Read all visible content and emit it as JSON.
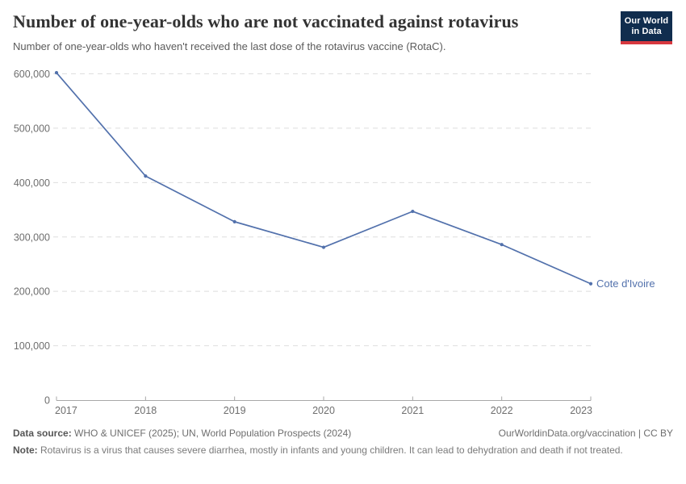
{
  "header": {
    "logo": {
      "line1": "Our World",
      "line2": "in Data"
    }
  },
  "chart_data": {
    "type": "line",
    "title": "Number of one-year-olds who are not vaccinated against rotavirus",
    "subtitle": "Number of one-year-olds who haven't received the last dose of the rotavirus vaccine (RotaC).",
    "x": [
      2017,
      2018,
      2019,
      2020,
      2021,
      2022,
      2023
    ],
    "series": [
      {
        "name": "Cote d'Ivoire",
        "color": "#5271ac",
        "values": [
          602000,
          412000,
          328000,
          281000,
          347000,
          286000,
          214000
        ]
      }
    ],
    "xlabel": "",
    "ylabel": "",
    "ylim": [
      0,
      600000
    ],
    "y_ticks": [
      0,
      100000,
      200000,
      300000,
      400000,
      500000,
      600000
    ],
    "x_tick_labels": [
      "2017",
      "2018",
      "2019",
      "2020",
      "2021",
      "2022",
      "2023"
    ],
    "grid": "horizontal-dashed",
    "legend_position": "end-of-line-label"
  },
  "footer": {
    "data_source_label": "Data source:",
    "data_source_text": " WHO & UNICEF (2025); UN, World Population Prospects (2024)",
    "link_text": "OurWorldinData.org/vaccination | CC BY",
    "note_label": "Note:",
    "note_text": " Rotavirus is a virus that causes severe diarrhea, mostly in infants and young children. It can lead to dehydration and death if not treated."
  },
  "colors": {
    "line": "#5271ac",
    "brand_navy": "#102d4e",
    "brand_red": "#d7383f",
    "grid": "#dedede",
    "axis": "#a8a8a8",
    "tick_label": "#6e6e6e"
  }
}
